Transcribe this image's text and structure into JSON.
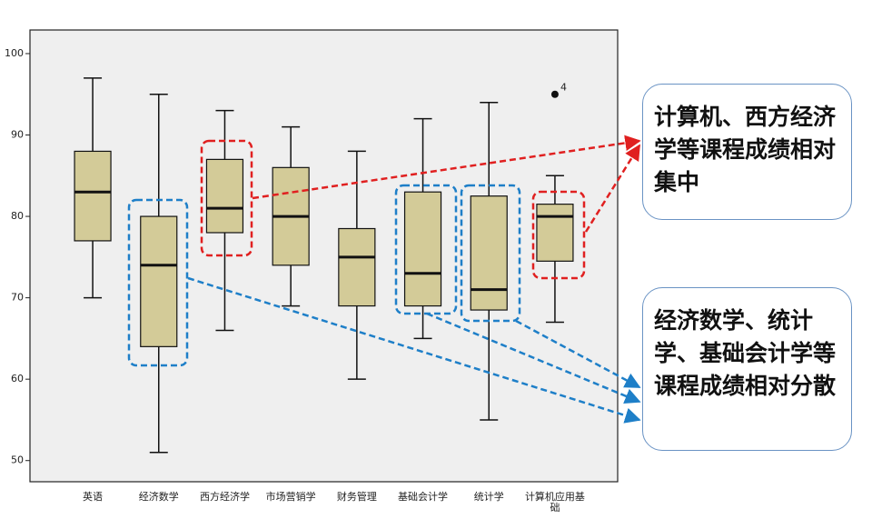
{
  "chart_data": {
    "type": "box",
    "categories": [
      "英语",
      "经济数学",
      "西方经济学",
      "市场营销学",
      "财务管理",
      "基础会计学",
      "统计学",
      "计算机应用基础"
    ],
    "boxes": [
      {
        "min": 70,
        "q1": 77,
        "median": 83,
        "q3": 88,
        "max": 97
      },
      {
        "min": 51,
        "q1": 64,
        "median": 74,
        "q3": 80,
        "max": 95
      },
      {
        "min": 66,
        "q1": 78,
        "median": 81,
        "q3": 87,
        "max": 93
      },
      {
        "min": 69,
        "q1": 74,
        "median": 80,
        "q3": 86,
        "max": 91
      },
      {
        "min": 60,
        "q1": 69,
        "median": 75,
        "q3": 78.5,
        "max": 88
      },
      {
        "min": 65,
        "q1": 69,
        "median": 73,
        "q3": 83,
        "max": 92
      },
      {
        "min": 55,
        "q1": 68.5,
        "median": 71,
        "q3": 82.5,
        "max": 94
      },
      {
        "min": 67,
        "q1": 74.5,
        "median": 80,
        "q3": 81.5,
        "max": 85,
        "outliers": [
          {
            "value": 95,
            "label": "4"
          }
        ]
      }
    ],
    "color": "#d3cb98",
    "ylim": [
      47.4,
      102.9
    ],
    "yticks": [
      50,
      60,
      70,
      80,
      90,
      100
    ],
    "annotations": [
      "计算机、西方经济学等课程成绩相对集中",
      "经济数学、统计学、基础会计学等课程成绩相对分散"
    ]
  }
}
